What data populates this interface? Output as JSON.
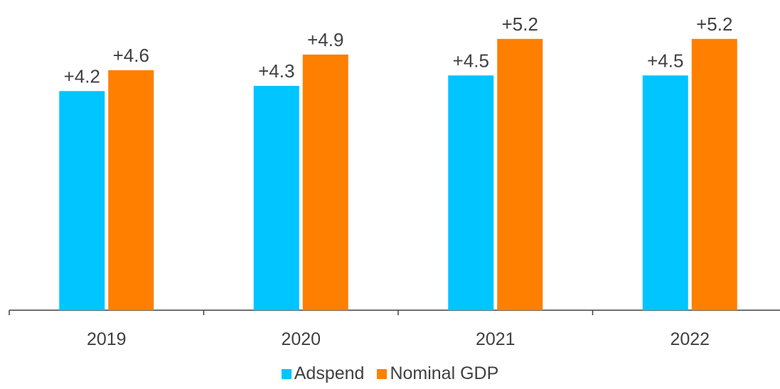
{
  "chart_data": {
    "type": "bar",
    "categories": [
      "2019",
      "2020",
      "2021",
      "2022"
    ],
    "series": [
      {
        "name": "Adspend",
        "color": "#00C5FF",
        "values": [
          4.2,
          4.3,
          4.5,
          4.5
        ],
        "labels": [
          "+4.2",
          "+4.3",
          "+4.5",
          "+4.5"
        ]
      },
      {
        "name": "Nominal GDP",
        "color": "#FF7F00",
        "values": [
          4.6,
          4.9,
          5.2,
          5.2
        ],
        "labels": [
          "+4.6",
          "+4.9",
          "+5.2",
          "+5.2"
        ]
      }
    ],
    "title": "",
    "xlabel": "",
    "ylabel": "",
    "grid": false,
    "legend_position": "bottom"
  }
}
